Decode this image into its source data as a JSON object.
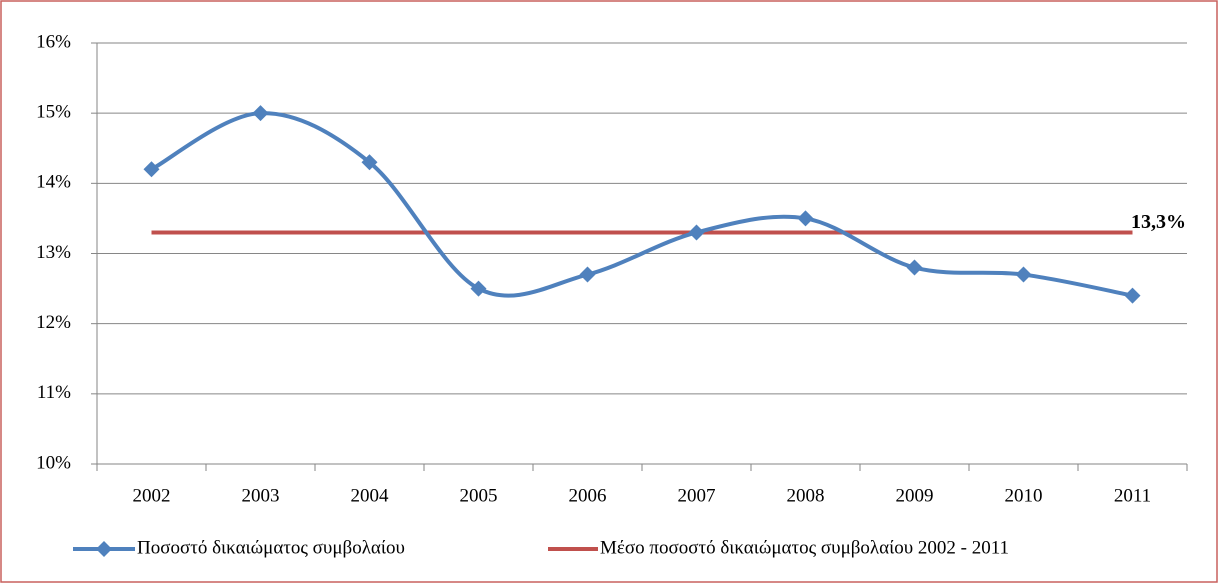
{
  "chart_data": {
    "type": "line",
    "categories": [
      "2002",
      "2003",
      "2004",
      "2005",
      "2006",
      "2007",
      "2008",
      "2009",
      "2010",
      "2011"
    ],
    "series": [
      {
        "name": "Ποσοστό δικαιώματος συμβολαίου",
        "color": "#4f81bd",
        "values": [
          14.2,
          15.0,
          14.3,
          12.5,
          12.7,
          13.3,
          13.5,
          12.8,
          12.7,
          12.4
        ]
      },
      {
        "name": "Μέσο ποσοστό δικαιώματος συμβολαίου 2002 - 2011",
        "color": "#c0504d",
        "values": [
          13.3,
          13.3,
          13.3,
          13.3,
          13.3,
          13.3,
          13.3,
          13.3,
          13.3,
          13.3
        ]
      }
    ],
    "annotation": {
      "value": 13.3,
      "label": "13,3%"
    },
    "ylim": [
      10,
      16
    ],
    "yticks": [
      {
        "value": 10,
        "label": "10%"
      },
      {
        "value": 11,
        "label": "11%"
      },
      {
        "value": 12,
        "label": "12%"
      },
      {
        "value": 13,
        "label": "13%"
      },
      {
        "value": 14,
        "label": "14%"
      },
      {
        "value": 15,
        "label": "15%"
      },
      {
        "value": 16,
        "label": "16%"
      }
    ],
    "grid": true,
    "legend": "bottom"
  }
}
